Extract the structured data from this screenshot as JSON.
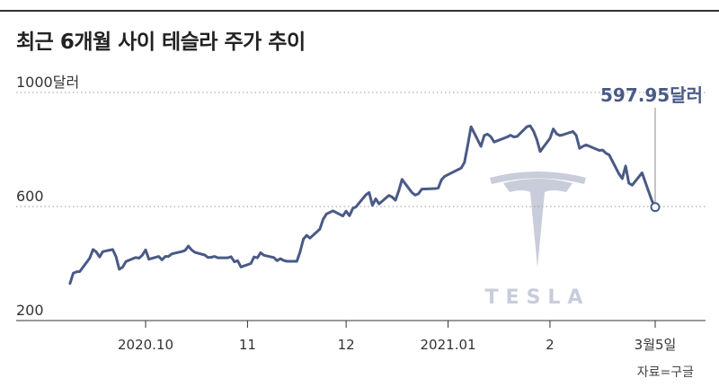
{
  "header": {
    "title": "최근 6개월 사이 테슬라 주가 추이"
  },
  "source": "자료=구글",
  "chart_data": {
    "type": "line",
    "title": "최근 6개월 사이 테슬라 주가 추이",
    "xlabel": "",
    "ylabel": "",
    "y_tick_labels": [
      "1000달러",
      "600",
      "200"
    ],
    "x_tick_labels": [
      "2020.10",
      "11",
      "12",
      "2021.01",
      "2",
      "3월5일"
    ],
    "ylim": [
      200,
      1000
    ],
    "grid": "dotted horizontal at 200, 600, 1000",
    "annotation": {
      "text": "597.95달러",
      "value": 597.95,
      "date": "2021-03-05"
    },
    "watermark": "TESLA",
    "line_color": "#4a5a86",
    "series": [
      {
        "values": [
          [
            "2020-09-08",
            330
          ],
          [
            "2020-09-09",
            366
          ],
          [
            "2020-09-10",
            371
          ],
          [
            "2020-09-11",
            372
          ],
          [
            "2020-09-14",
            419
          ],
          [
            "2020-09-15",
            449
          ],
          [
            "2020-09-16",
            441
          ],
          [
            "2020-09-17",
            423
          ],
          [
            "2020-09-18",
            442
          ],
          [
            "2020-09-21",
            449
          ],
          [
            "2020-09-22",
            424
          ],
          [
            "2020-09-23",
            380
          ],
          [
            "2020-09-24",
            387
          ],
          [
            "2020-09-25",
            407
          ],
          [
            "2020-09-28",
            421
          ],
          [
            "2020-09-29",
            419
          ],
          [
            "2020-09-30",
            429
          ],
          [
            "2020-10-01",
            448
          ],
          [
            "2020-10-02",
            415
          ],
          [
            "2020-10-05",
            425
          ],
          [
            "2020-10-06",
            413
          ],
          [
            "2020-10-07",
            425
          ],
          [
            "2020-10-08",
            425
          ],
          [
            "2020-10-09",
            434
          ],
          [
            "2020-10-12",
            442
          ],
          [
            "2020-10-13",
            446
          ],
          [
            "2020-10-14",
            461
          ],
          [
            "2020-10-15",
            448
          ],
          [
            "2020-10-16",
            439
          ],
          [
            "2020-10-19",
            430
          ],
          [
            "2020-10-20",
            421
          ],
          [
            "2020-10-21",
            422
          ],
          [
            "2020-10-22",
            425
          ],
          [
            "2020-10-23",
            420
          ],
          [
            "2020-10-26",
            420
          ],
          [
            "2020-10-27",
            424
          ],
          [
            "2020-10-28",
            406
          ],
          [
            "2020-10-29",
            410
          ],
          [
            "2020-10-30",
            388
          ],
          [
            "2020-11-02",
            400
          ],
          [
            "2020-11-03",
            423
          ],
          [
            "2020-11-04",
            420
          ],
          [
            "2020-11-05",
            438
          ],
          [
            "2020-11-06",
            429
          ],
          [
            "2020-11-09",
            421
          ],
          [
            "2020-11-10",
            410
          ],
          [
            "2020-11-11",
            417
          ],
          [
            "2020-11-12",
            411
          ],
          [
            "2020-11-13",
            408
          ],
          [
            "2020-11-16",
            408
          ],
          [
            "2020-11-17",
            441
          ],
          [
            "2020-11-18",
            486
          ],
          [
            "2020-11-19",
            499
          ],
          [
            "2020-11-20",
            489
          ],
          [
            "2020-11-23",
            521
          ],
          [
            "2020-11-24",
            555
          ],
          [
            "2020-11-25",
            574
          ],
          [
            "2020-11-27",
            585
          ],
          [
            "2020-11-30",
            567
          ],
          [
            "2020-12-01",
            584
          ],
          [
            "2020-12-02",
            568
          ],
          [
            "2020-12-03",
            593
          ],
          [
            "2020-12-04",
            599
          ],
          [
            "2020-12-07",
            641
          ],
          [
            "2020-12-08",
            649
          ],
          [
            "2020-12-09",
            604
          ],
          [
            "2020-12-10",
            627
          ],
          [
            "2020-12-11",
            609
          ],
          [
            "2020-12-14",
            639
          ],
          [
            "2020-12-15",
            633
          ],
          [
            "2020-12-16",
            622
          ],
          [
            "2020-12-17",
            655
          ],
          [
            "2020-12-18",
            695
          ],
          [
            "2020-12-21",
            649
          ],
          [
            "2020-12-22",
            640
          ],
          [
            "2020-12-23",
            645
          ],
          [
            "2020-12-24",
            661
          ],
          [
            "2020-12-28",
            663
          ],
          [
            "2020-12-29",
            665
          ],
          [
            "2020-12-30",
            694
          ],
          [
            "2020-12-31",
            706
          ],
          [
            "2021-01-04",
            729
          ],
          [
            "2021-01-05",
            735
          ],
          [
            "2021-01-06",
            755
          ],
          [
            "2021-01-07",
            816
          ],
          [
            "2021-01-08",
            880
          ],
          [
            "2021-01-11",
            811
          ],
          [
            "2021-01-12",
            849
          ],
          [
            "2021-01-13",
            854
          ],
          [
            "2021-01-14",
            845
          ],
          [
            "2021-01-15",
            826
          ],
          [
            "2021-01-19",
            844
          ],
          [
            "2021-01-20",
            850
          ],
          [
            "2021-01-21",
            844
          ],
          [
            "2021-01-22",
            846
          ],
          [
            "2021-01-25",
            880
          ],
          [
            "2021-01-26",
            883
          ],
          [
            "2021-01-27",
            864
          ],
          [
            "2021-01-28",
            835
          ],
          [
            "2021-01-29",
            793
          ],
          [
            "2021-02-01",
            839
          ],
          [
            "2021-02-02",
            872
          ],
          [
            "2021-02-03",
            855
          ],
          [
            "2021-02-04",
            849
          ],
          [
            "2021-02-05",
            852
          ],
          [
            "2021-02-08",
            863
          ],
          [
            "2021-02-09",
            849
          ],
          [
            "2021-02-10",
            804
          ],
          [
            "2021-02-11",
            811
          ],
          [
            "2021-02-12",
            816
          ],
          [
            "2021-02-16",
            797
          ],
          [
            "2021-02-17",
            798
          ],
          [
            "2021-02-18",
            787
          ],
          [
            "2021-02-19",
            781
          ],
          [
            "2021-02-22",
            714
          ],
          [
            "2021-02-23",
            698
          ],
          [
            "2021-02-24",
            742
          ],
          [
            "2021-02-25",
            682
          ],
          [
            "2021-02-26",
            675
          ],
          [
            "2021-03-01",
            718
          ],
          [
            "2021-03-02",
            686
          ],
          [
            "2021-03-03",
            653
          ],
          [
            "2021-03-04",
            621
          ],
          [
            "2021-03-05",
            597.95
          ]
        ]
      }
    ]
  }
}
